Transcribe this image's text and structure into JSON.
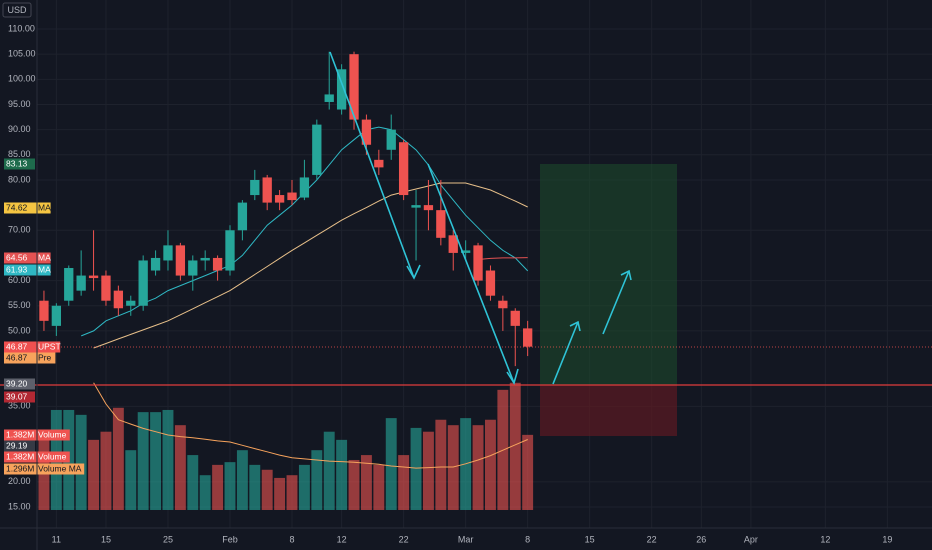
{
  "chart_data": {
    "type": "candlestick",
    "currency": "USD",
    "open": [
      56,
      51,
      56,
      58,
      61,
      61,
      58,
      55,
      55,
      62,
      64,
      67,
      61,
      64,
      64.5,
      62,
      70,
      77,
      80.5,
      77,
      77.5,
      76.5,
      81,
      95.5,
      94,
      105,
      92,
      84,
      86,
      87.5,
      74.5,
      75,
      74,
      69,
      65.5,
      67,
      62,
      56,
      54,
      50.5
    ],
    "high": [
      58,
      55.5,
      63,
      66,
      70,
      62,
      59,
      57,
      65,
      66,
      70,
      67.5,
      65,
      66,
      65,
      71,
      76,
      82,
      81,
      78,
      80,
      84,
      92,
      105.5,
      103,
      105.5,
      93,
      86,
      93,
      88,
      78,
      80,
      80,
      70,
      68,
      67.5,
      63,
      57,
      54.5,
      52
    ],
    "low": [
      50,
      49,
      55,
      57,
      58,
      55,
      53,
      53,
      54,
      61,
      62,
      60,
      58,
      62,
      60,
      61,
      68,
      76,
      74,
      74,
      75,
      76,
      80,
      94,
      93,
      90,
      85,
      81,
      84,
      76,
      64,
      70,
      67,
      62,
      64,
      59,
      56,
      50,
      43,
      45
    ],
    "close": [
      52,
      55,
      62.5,
      61,
      60.5,
      56,
      54.5,
      56,
      64,
      64.5,
      67,
      61,
      64,
      64.5,
      62,
      70,
      75.5,
      80,
      75.5,
      75.5,
      76,
      80.5,
      91,
      97,
      102,
      92,
      87,
      82.5,
      90,
      77,
      75,
      74,
      68.5,
      65.5,
      66,
      60,
      57,
      54.5,
      51,
      46.87
    ],
    "volume": {
      "name": "Volume",
      "values": [
        1.38,
        1.84,
        1.84,
        1.75,
        1.29,
        1.44,
        1.88,
        1.1,
        1.8,
        1.8,
        1.84,
        1.56,
        1.01,
        0.64,
        0.83,
        0.88,
        1.1,
        0.83,
        0.74,
        0.59,
        0.64,
        0.83,
        1.1,
        1.44,
        1.29,
        0.92,
        1.01,
        0.83,
        1.69,
        1.01,
        1.51,
        1.44,
        1.66,
        1.56,
        1.69,
        1.56,
        1.66,
        2.21,
        2.34,
        1.382
      ]
    },
    "volume_ma": {
      "name": "Volume MA",
      "color": "#f7a35c",
      "values": [
        null,
        null,
        null,
        null,
        2.34,
        1.95,
        1.66,
        1.58,
        1.5,
        1.44,
        1.38,
        1.35,
        1.33,
        1.3,
        1.27,
        1.25,
        1.19,
        1.13,
        1.07,
        1.01,
        0.96,
        0.94,
        0.92,
        0.9,
        0.89,
        0.88,
        0.86,
        0.84,
        0.81,
        0.79,
        0.77,
        0.78,
        0.79,
        0.79,
        0.85,
        0.92,
        1.0,
        1.1,
        1.2,
        1.296
      ]
    },
    "series": [
      {
        "name": "MA",
        "color": "#2fb8c4",
        "values": [
          null,
          null,
          null,
          49,
          50,
          52,
          53,
          54,
          55.5,
          56.5,
          58,
          59,
          60,
          61,
          62,
          63,
          65,
          68,
          71,
          73,
          75,
          77.5,
          80,
          83,
          86,
          88,
          90,
          90.5,
          90,
          88,
          86,
          83,
          79,
          76,
          73,
          70.5,
          68,
          66,
          64.5,
          61.93
        ]
      },
      {
        "name": "MA",
        "color": "#e8c08a",
        "values": [
          null,
          null,
          null,
          null,
          46.6,
          47.5,
          48.4,
          49.3,
          50.2,
          51.1,
          52,
          53.2,
          54.4,
          55.6,
          56.8,
          58,
          59.6,
          61.2,
          62.8,
          64.4,
          66,
          67.5,
          69,
          70.5,
          72,
          73.3,
          74.5,
          75.8,
          77,
          77.6,
          78.2,
          78.8,
          79.4,
          79.4,
          79.4,
          78.7,
          78,
          76.9,
          75.8,
          74.62
        ]
      },
      {
        "name": "MA",
        "color": "#e35252",
        "values": [
          null,
          null,
          null,
          null,
          null,
          null,
          null,
          null,
          null,
          null,
          null,
          null,
          null,
          null,
          null,
          null,
          null,
          null,
          null,
          null,
          null,
          null,
          null,
          null,
          null,
          null,
          null,
          null,
          null,
          null,
          null,
          null,
          null,
          null,
          null,
          64.2,
          64.4,
          64.5,
          64.5,
          64.56
        ]
      }
    ],
    "up_color": "#26a69a",
    "down_color": "#ef5350",
    "xlim": [
      -0.56,
      71.6
    ],
    "ylim": [
      11.42,
      115.77
    ],
    "vlim": [
      0,
      9.38
    ],
    "xticks": [
      {
        "value": 1,
        "label": "11"
      },
      {
        "value": 5,
        "label": "15"
      },
      {
        "value": 10,
        "label": "25"
      },
      {
        "value": 15,
        "label": "Feb"
      },
      {
        "value": 20,
        "label": "8"
      },
      {
        "value": 24,
        "label": "12"
      },
      {
        "value": 29,
        "label": "22"
      },
      {
        "value": 34,
        "label": "Mar"
      },
      {
        "value": 39,
        "label": "8"
      },
      {
        "value": 44,
        "label": "15"
      },
      {
        "value": 49,
        "label": "22"
      },
      {
        "value": 53,
        "label": "26"
      },
      {
        "value": 57,
        "label": "Apr"
      },
      {
        "value": 63,
        "label": "12"
      },
      {
        "value": 68,
        "label": "19"
      }
    ],
    "yticks": [
      {
        "value": 110,
        "label": "110.00"
      },
      {
        "value": 105,
        "label": "105.00"
      },
      {
        "value": 100,
        "label": "100.00"
      },
      {
        "value": 95,
        "label": "95.00"
      },
      {
        "value": 90,
        "label": "90.00"
      },
      {
        "value": 85,
        "label": "85.00"
      },
      {
        "value": 80,
        "label": "80.00"
      },
      {
        "value": 70,
        "label": "70.00"
      },
      {
        "value": 60,
        "label": "60.00"
      },
      {
        "value": 55,
        "label": "55.00"
      },
      {
        "value": 50,
        "label": "50.00"
      },
      {
        "value": 35,
        "label": "35.00"
      },
      {
        "value": 20,
        "label": "20.00"
      },
      {
        "value": 15,
        "label": "15.00"
      }
    ],
    "grid": true,
    "price_labels": [
      {
        "label": "83.13",
        "color": "#1e6b4c"
      },
      {
        "label": "74.62",
        "tag": "MA",
        "color": "#f5c542"
      },
      {
        "label": "64.56",
        "tag": "MA",
        "color": "#e35252"
      },
      {
        "label": "61.93",
        "tag": "MA",
        "color": "#2fb8c4"
      },
      {
        "label": "46.87",
        "tag": "UPST",
        "color": "#f05050"
      },
      {
        "label": "46.87",
        "tag": "Pre",
        "color": "#f7a35c"
      },
      {
        "label": "39.20",
        "color": "#5d606b"
      },
      {
        "label": "39.07",
        "color": "#b22833"
      },
      {
        "label": "1.382M",
        "tag": "Volume",
        "color": "#ef5350"
      },
      {
        "label": "29.19",
        "color": "#363a45"
      },
      {
        "label": "1.382M",
        "tag": "Volume",
        "color": "#ef5350"
      },
      {
        "label": "1.296M",
        "tag": "Volume MA",
        "color": "#f7a35c"
      }
    ]
  }
}
